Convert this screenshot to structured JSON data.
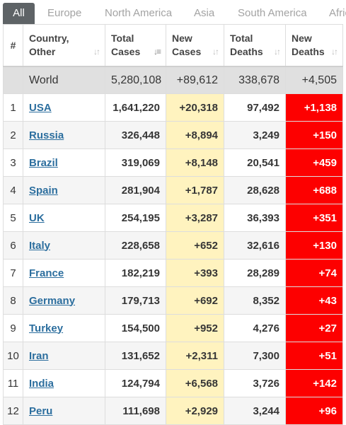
{
  "tabs": [
    "All",
    "Europe",
    "North America",
    "Asia",
    "South America",
    "Africa"
  ],
  "columns": {
    "num": "#",
    "country": [
      "Country,",
      "Other"
    ],
    "total_cases": [
      "Total",
      "Cases"
    ],
    "new_cases": [
      "New",
      "Cases"
    ],
    "total_deaths": [
      "Total",
      "Deaths"
    ],
    "new_deaths": [
      "New",
      "Deaths"
    ]
  },
  "world": {
    "country": "World",
    "total_cases": "5,280,108",
    "new_cases": "+89,612",
    "total_deaths": "338,678",
    "new_deaths": "+4,505"
  },
  "rows": [
    {
      "n": "1",
      "country": "USA",
      "total_cases": "1,641,220",
      "new_cases": "+20,318",
      "total_deaths": "97,492",
      "new_deaths": "+1,138"
    },
    {
      "n": "2",
      "country": "Russia",
      "total_cases": "326,448",
      "new_cases": "+8,894",
      "total_deaths": "3,249",
      "new_deaths": "+150"
    },
    {
      "n": "3",
      "country": "Brazil",
      "total_cases": "319,069",
      "new_cases": "+8,148",
      "total_deaths": "20,541",
      "new_deaths": "+459"
    },
    {
      "n": "4",
      "country": "Spain",
      "total_cases": "281,904",
      "new_cases": "+1,787",
      "total_deaths": "28,628",
      "new_deaths": "+688"
    },
    {
      "n": "5",
      "country": "UK",
      "total_cases": "254,195",
      "new_cases": "+3,287",
      "total_deaths": "36,393",
      "new_deaths": "+351"
    },
    {
      "n": "6",
      "country": "Italy",
      "total_cases": "228,658",
      "new_cases": "+652",
      "total_deaths": "32,616",
      "new_deaths": "+130"
    },
    {
      "n": "7",
      "country": "France",
      "total_cases": "182,219",
      "new_cases": "+393",
      "total_deaths": "28,289",
      "new_deaths": "+74"
    },
    {
      "n": "8",
      "country": "Germany",
      "total_cases": "179,713",
      "new_cases": "+692",
      "total_deaths": "8,352",
      "new_deaths": "+43"
    },
    {
      "n": "9",
      "country": "Turkey",
      "total_cases": "154,500",
      "new_cases": "+952",
      "total_deaths": "4,276",
      "new_deaths": "+27"
    },
    {
      "n": "10",
      "country": "Iran",
      "total_cases": "131,652",
      "new_cases": "+2,311",
      "total_deaths": "7,300",
      "new_deaths": "+51"
    },
    {
      "n": "11",
      "country": "India",
      "total_cases": "124,794",
      "new_cases": "+6,568",
      "total_deaths": "3,726",
      "new_deaths": "+142"
    },
    {
      "n": "12",
      "country": "Peru",
      "total_cases": "111,698",
      "new_cases": "+2,929",
      "total_deaths": "3,244",
      "new_deaths": "+96"
    }
  ],
  "colors": {
    "active_tab": "#5e6366",
    "new_cases_bg": "#fff3bf",
    "new_deaths_bg": "#fd0000",
    "world_row_bg": "#e0e0e0",
    "link": "#2c6e9e"
  },
  "icons": {
    "sort": "sort-arrows-icon",
    "sort_active": "sort-descending-icon"
  }
}
